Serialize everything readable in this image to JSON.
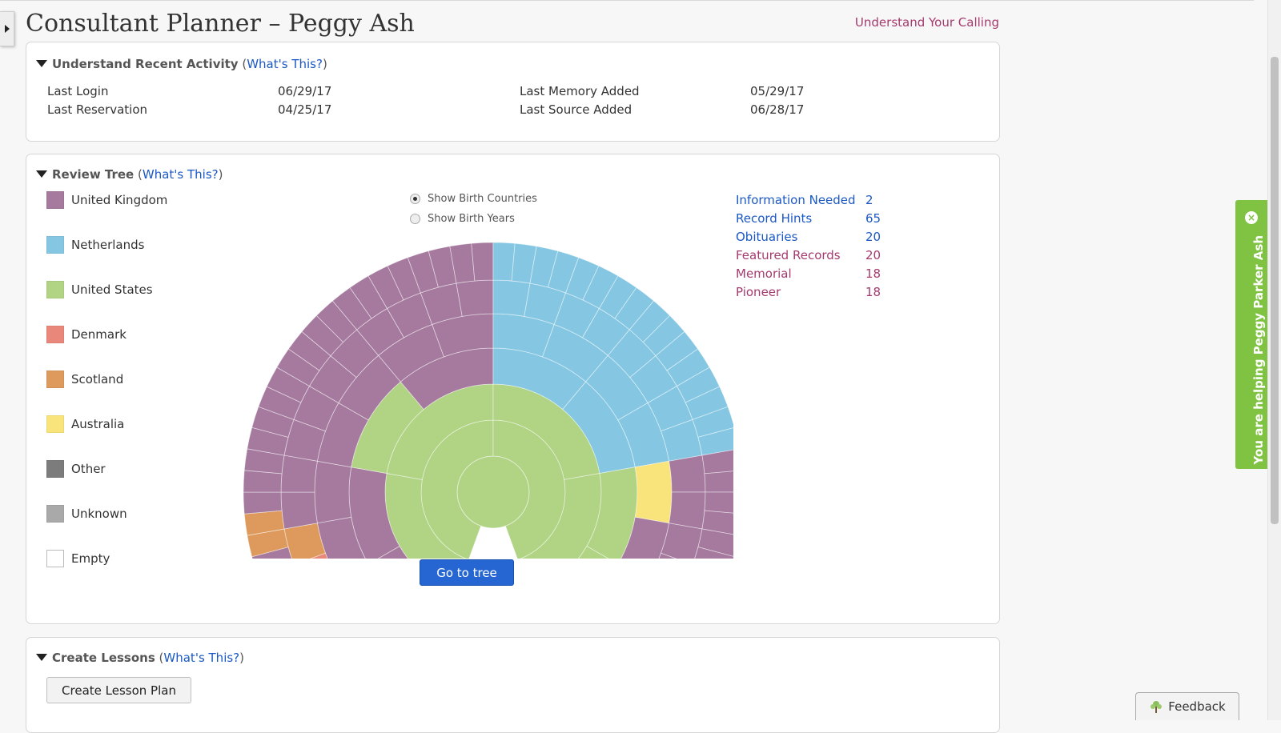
{
  "header": {
    "title": "Consultant Planner – Peggy Ash",
    "calling_link": "Understand Your Calling"
  },
  "activity": {
    "title": "Understand Recent Activity",
    "whats_this": "What's This?",
    "rows": [
      {
        "label": "Last Login",
        "value": "06/29/17"
      },
      {
        "label": "Last Memory Added",
        "value": "05/29/17"
      },
      {
        "label": "Last Reservation",
        "value": "04/25/17"
      },
      {
        "label": "Last Source Added",
        "value": "06/28/17"
      }
    ]
  },
  "tree": {
    "title": "Review Tree",
    "whats_this": "What's This?",
    "legend": [
      {
        "label": "United Kingdom",
        "color": "#a57a9e"
      },
      {
        "label": "Netherlands",
        "color": "#85c7e2"
      },
      {
        "label": "United States",
        "color": "#b0d384"
      },
      {
        "label": "Denmark",
        "color": "#e8877a"
      },
      {
        "label": "Scotland",
        "color": "#de9a5c"
      },
      {
        "label": "Australia",
        "color": "#f8e47a"
      },
      {
        "label": "Other",
        "color": "#7c7c7c"
      },
      {
        "label": "Unknown",
        "color": "#a9a9a9"
      },
      {
        "label": "Empty",
        "color": "#ffffff"
      }
    ],
    "view_options": [
      {
        "label": "Show Birth Countries",
        "selected": true
      },
      {
        "label": "Show Birth Years",
        "selected": false
      }
    ],
    "stats": [
      {
        "label": "Information Needed",
        "value": "2",
        "color": "#1b58c4"
      },
      {
        "label": "Record Hints",
        "value": "65",
        "color": "#1b58c4"
      },
      {
        "label": "Obituaries",
        "value": "20",
        "color": "#1b58c4"
      },
      {
        "label": "Featured Records",
        "value": "20",
        "color": "#a43a6e"
      },
      {
        "label": "Memorial",
        "value": "18",
        "color": "#a43a6e"
      },
      {
        "label": "Pioneer",
        "value": "18",
        "color": "#a43a6e"
      }
    ],
    "go_button": "Go to tree"
  },
  "lessons": {
    "title": "Create Lessons",
    "whats_this": "What's This?",
    "button": "Create Lesson Plan"
  },
  "helping_tab": {
    "text": "You are helping Peggy Parker Ash",
    "close": "×"
  },
  "feedback": {
    "label": "Feedback",
    "icon": "tree-icon"
  }
}
